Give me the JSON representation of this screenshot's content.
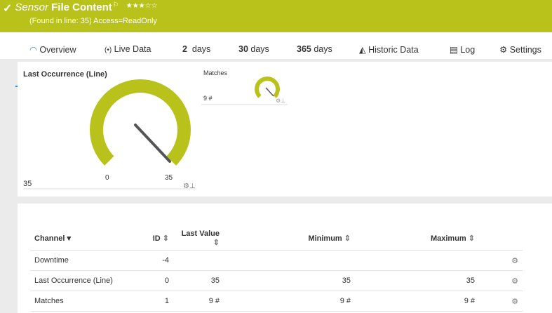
{
  "header": {
    "status_icon": "check-icon",
    "prefix": "Sensor",
    "title": "File Content",
    "flag_icon": "flag-icon",
    "stars": "★★★☆☆",
    "rating": 3,
    "subtitle": "(Found in line: 35) Access=ReadOnly"
  },
  "tabs": [
    {
      "label": "Overview",
      "icon": "gauge-icon"
    },
    {
      "label": "Live Data",
      "icon": "radio-icon"
    },
    {
      "num": "2",
      "label": "days"
    },
    {
      "num": "30",
      "label": "days"
    },
    {
      "num": "365",
      "label": "days"
    },
    {
      "label": "Historic Data",
      "icon": "chart-icon"
    },
    {
      "label": "Log",
      "icon": "log-icon"
    },
    {
      "label": "Settings",
      "icon": "gear-icon"
    }
  ],
  "gauges": [
    {
      "title": "Last Occurrence (Line)",
      "value": "35",
      "min": "0",
      "max": "35",
      "fraction": 1
    },
    {
      "title": "Matches",
      "value": "9 #",
      "fraction": 1
    }
  ],
  "table": {
    "headers": [
      "Channel",
      "ID",
      "Last Value",
      "Minimum",
      "Maximum"
    ],
    "rows": [
      [
        "Downtime",
        "-4",
        "",
        "",
        ""
      ],
      [
        "Last Occurrence (Line)",
        "0",
        "35",
        "35",
        "35"
      ],
      [
        "Matches",
        "1",
        "9 #",
        "9 #",
        "9 #"
      ]
    ]
  },
  "colors": {
    "accent": "#b8c21a",
    "tab_active": "#3a88c8"
  }
}
